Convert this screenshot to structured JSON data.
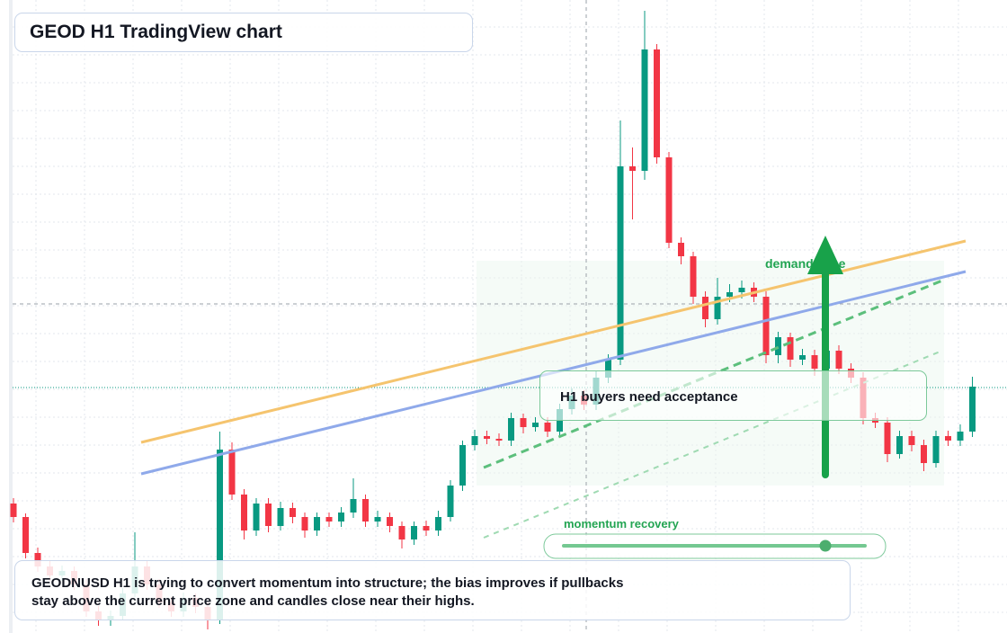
{
  "chart_data": {
    "type": "candlestick",
    "title": "GEOD H1 TradingView chart",
    "annotations": {
      "acceptance": "H1 buyers need acceptance",
      "demand": "demand zone",
      "momentum": "momentum recovery"
    },
    "description": [
      "GEODNUSD H1 is trying to convert momentum into structure; the bias improves if pullbacks",
      "stay above the current price zone and candles close near their highs."
    ],
    "up_color": "#089981",
    "down_color": "#f23645",
    "ylim": [
      0,
      704
    ],
    "ohlc": [
      [
        144,
        150,
        123,
        129
      ],
      [
        129,
        133,
        83,
        89
      ],
      [
        89,
        95,
        68,
        74
      ],
      [
        74,
        80,
        58,
        64
      ],
      [
        64,
        75,
        58,
        69
      ],
      [
        69,
        74,
        48,
        54
      ],
      [
        54,
        60,
        18,
        24
      ],
      [
        24,
        30,
        8,
        14
      ],
      [
        14,
        25,
        8,
        19
      ],
      [
        19,
        50,
        14,
        44
      ],
      [
        44,
        112,
        40,
        74
      ],
      [
        74,
        80,
        48,
        54
      ],
      [
        54,
        60,
        28,
        34
      ],
      [
        34,
        40,
        18,
        24
      ],
      [
        24,
        45,
        18,
        39
      ],
      [
        39,
        44,
        22,
        29
      ],
      [
        29,
        34,
        4,
        14
      ],
      [
        14,
        224,
        10,
        204
      ],
      [
        204,
        212,
        148,
        154
      ],
      [
        154,
        160,
        104,
        114
      ],
      [
        114,
        150,
        108,
        144
      ],
      [
        144,
        150,
        112,
        119
      ],
      [
        119,
        146,
        114,
        139
      ],
      [
        139,
        145,
        122,
        129
      ],
      [
        129,
        134,
        106,
        114
      ],
      [
        114,
        134,
        108,
        129
      ],
      [
        129,
        134,
        118,
        124
      ],
      [
        124,
        140,
        118,
        134
      ],
      [
        134,
        172,
        128,
        149
      ],
      [
        149,
        154,
        118,
        124
      ],
      [
        124,
        136,
        118,
        129
      ],
      [
        129,
        134,
        112,
        119
      ],
      [
        119,
        124,
        94,
        104
      ],
      [
        104,
        124,
        98,
        119
      ],
      [
        119,
        125,
        108,
        114
      ],
      [
        114,
        136,
        108,
        129
      ],
      [
        129,
        170,
        124,
        164
      ],
      [
        164,
        214,
        158,
        209
      ],
      [
        209,
        226,
        203,
        219
      ],
      [
        219,
        225,
        210,
        216
      ],
      [
        216,
        222,
        208,
        214
      ],
      [
        214,
        245,
        208,
        239
      ],
      [
        239,
        244,
        222,
        229
      ],
      [
        229,
        240,
        224,
        234
      ],
      [
        234,
        240,
        218,
        224
      ],
      [
        224,
        255,
        218,
        249
      ],
      [
        249,
        272,
        243,
        264
      ],
      [
        264,
        270,
        248,
        254
      ],
      [
        254,
        292,
        248,
        284
      ],
      [
        284,
        310,
        278,
        304
      ],
      [
        304,
        570,
        298,
        519
      ],
      [
        519,
        540,
        460,
        514
      ],
      [
        514,
        692,
        504,
        649
      ],
      [
        649,
        655,
        522,
        529
      ],
      [
        529,
        535,
        428,
        434
      ],
      [
        434,
        440,
        410,
        419
      ],
      [
        419,
        424,
        366,
        374
      ],
      [
        374,
        380,
        340,
        349
      ],
      [
        349,
        395,
        343,
        374
      ],
      [
        374,
        388,
        368,
        379
      ],
      [
        379,
        392,
        372,
        384
      ],
      [
        384,
        390,
        368,
        374
      ],
      [
        374,
        380,
        300,
        309
      ],
      [
        309,
        335,
        300,
        329
      ],
      [
        329,
        334,
        296,
        304
      ],
      [
        304,
        316,
        298,
        309
      ],
      [
        309,
        315,
        286,
        294
      ],
      [
        294,
        320,
        288,
        314
      ],
      [
        314,
        320,
        288,
        294
      ],
      [
        294,
        300,
        278,
        284
      ],
      [
        284,
        290,
        232,
        239
      ],
      [
        239,
        245,
        228,
        234
      ],
      [
        234,
        240,
        190,
        199
      ],
      [
        199,
        225,
        194,
        219
      ],
      [
        219,
        225,
        202,
        209
      ],
      [
        209,
        215,
        180,
        189
      ],
      [
        189,
        225,
        184,
        219
      ],
      [
        219,
        225,
        208,
        214
      ],
      [
        214,
        232,
        208,
        224
      ],
      [
        224,
        285,
        218,
        274
      ]
    ]
  }
}
